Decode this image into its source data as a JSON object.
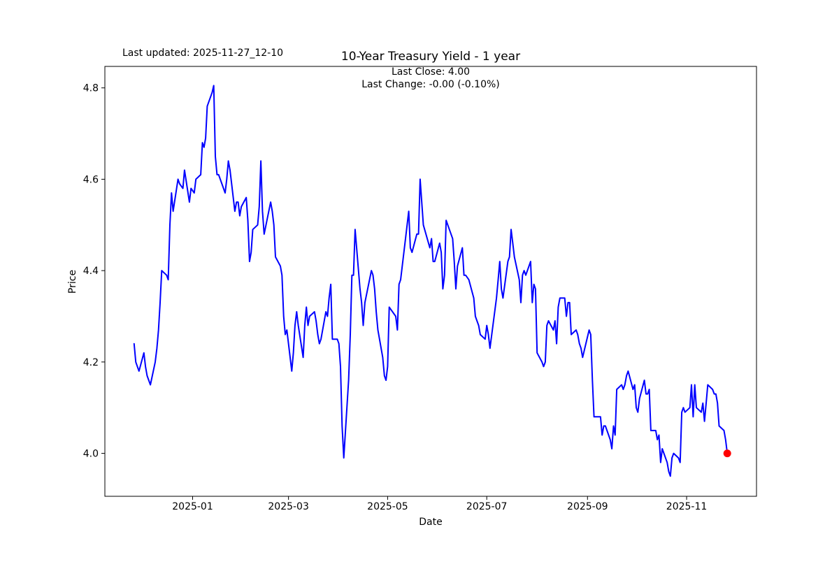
{
  "header": {
    "last_updated": "Last updated: 2025-11-27_12-10"
  },
  "chart_data": {
    "type": "line",
    "title": "10-Year Treasury Yield - 1 year",
    "subtitle_line1": "Last Close: 4.00",
    "subtitle_line2": "Last Change: -0.00 (-0.10%)",
    "xlabel": "Date",
    "ylabel": "Price",
    "legend": "none",
    "grid": false,
    "line_color": "#0000ff",
    "marker_color": "#ff0000",
    "xlim": [
      "2024-11-08",
      "2025-12-14"
    ],
    "ylim": [
      3.906,
      4.847
    ],
    "y_ticks": [
      4.0,
      4.2,
      4.4,
      4.6,
      4.8
    ],
    "x_ticks": [
      {
        "label": "2025-01",
        "date": "2025-01-01"
      },
      {
        "label": "2025-03",
        "date": "2025-03-01"
      },
      {
        "label": "2025-05",
        "date": "2025-05-01"
      },
      {
        "label": "2025-07",
        "date": "2025-07-01"
      },
      {
        "label": "2025-09",
        "date": "2025-09-01"
      },
      {
        "label": "2025-11",
        "date": "2025-11-01"
      }
    ],
    "series_name": "10-Year Treasury Yield",
    "last_close": 4.0,
    "last_change": "-0.00 (-0.10%)",
    "points": [
      [
        "2024-11-26",
        4.24
      ],
      [
        "2024-11-27",
        4.2
      ],
      [
        "2024-11-29",
        4.18
      ],
      [
        "2024-12-02",
        4.22
      ],
      [
        "2024-12-03",
        4.19
      ],
      [
        "2024-12-04",
        4.17
      ],
      [
        "2024-12-06",
        4.15
      ],
      [
        "2024-12-09",
        4.2
      ],
      [
        "2024-12-10",
        4.23
      ],
      [
        "2024-12-11",
        4.27
      ],
      [
        "2024-12-12",
        4.33
      ],
      [
        "2024-12-13",
        4.4
      ],
      [
        "2024-12-16",
        4.39
      ],
      [
        "2024-12-17",
        4.38
      ],
      [
        "2024-12-18",
        4.5
      ],
      [
        "2024-12-19",
        4.57
      ],
      [
        "2024-12-20",
        4.53
      ],
      [
        "2024-12-23",
        4.6
      ],
      [
        "2024-12-24",
        4.59
      ],
      [
        "2024-12-26",
        4.58
      ],
      [
        "2024-12-27",
        4.62
      ],
      [
        "2024-12-30",
        4.55
      ],
      [
        "2024-12-31",
        4.58
      ],
      [
        "2025-01-02",
        4.57
      ],
      [
        "2025-01-03",
        4.6
      ],
      [
        "2025-01-06",
        4.61
      ],
      [
        "2025-01-07",
        4.68
      ],
      [
        "2025-01-08",
        4.67
      ],
      [
        "2025-01-09",
        4.69
      ],
      [
        "2025-01-10",
        4.76
      ],
      [
        "2025-01-13",
        4.79
      ],
      [
        "2025-01-14",
        4.805
      ],
      [
        "2025-01-15",
        4.65
      ],
      [
        "2025-01-16",
        4.61
      ],
      [
        "2025-01-17",
        4.61
      ],
      [
        "2025-01-21",
        4.57
      ],
      [
        "2025-01-22",
        4.6
      ],
      [
        "2025-01-23",
        4.64
      ],
      [
        "2025-01-24",
        4.62
      ],
      [
        "2025-01-27",
        4.53
      ],
      [
        "2025-01-28",
        4.55
      ],
      [
        "2025-01-29",
        4.55
      ],
      [
        "2025-01-30",
        4.52
      ],
      [
        "2025-01-31",
        4.54
      ],
      [
        "2025-02-03",
        4.56
      ],
      [
        "2025-02-04",
        4.51
      ],
      [
        "2025-02-05",
        4.42
      ],
      [
        "2025-02-06",
        4.44
      ],
      [
        "2025-02-07",
        4.49
      ],
      [
        "2025-02-10",
        4.5
      ],
      [
        "2025-02-11",
        4.54
      ],
      [
        "2025-02-12",
        4.64
      ],
      [
        "2025-02-13",
        4.53
      ],
      [
        "2025-02-14",
        4.48
      ],
      [
        "2025-02-18",
        4.55
      ],
      [
        "2025-02-19",
        4.53
      ],
      [
        "2025-02-20",
        4.5
      ],
      [
        "2025-02-21",
        4.43
      ],
      [
        "2025-02-24",
        4.41
      ],
      [
        "2025-02-25",
        4.39
      ],
      [
        "2025-02-26",
        4.3
      ],
      [
        "2025-02-27",
        4.26
      ],
      [
        "2025-02-28",
        4.27
      ],
      [
        "2025-03-03",
        4.18
      ],
      [
        "2025-03-04",
        4.22
      ],
      [
        "2025-03-05",
        4.28
      ],
      [
        "2025-03-06",
        4.31
      ],
      [
        "2025-03-07",
        4.28
      ],
      [
        "2025-03-10",
        4.21
      ],
      [
        "2025-03-11",
        4.28
      ],
      [
        "2025-03-12",
        4.32
      ],
      [
        "2025-03-13",
        4.28
      ],
      [
        "2025-03-14",
        4.3
      ],
      [
        "2025-03-17",
        4.31
      ],
      [
        "2025-03-18",
        4.29
      ],
      [
        "2025-03-19",
        4.26
      ],
      [
        "2025-03-20",
        4.24
      ],
      [
        "2025-03-21",
        4.25
      ],
      [
        "2025-03-24",
        4.31
      ],
      [
        "2025-03-25",
        4.3
      ],
      [
        "2025-03-26",
        4.34
      ],
      [
        "2025-03-27",
        4.37
      ],
      [
        "2025-03-28",
        4.25
      ],
      [
        "2025-03-31",
        4.25
      ],
      [
        "2025-04-01",
        4.24
      ],
      [
        "2025-04-02",
        4.19
      ],
      [
        "2025-04-03",
        4.06
      ],
      [
        "2025-04-04",
        3.99
      ],
      [
        "2025-04-07",
        4.16
      ],
      [
        "2025-04-08",
        4.26
      ],
      [
        "2025-04-09",
        4.39
      ],
      [
        "2025-04-10",
        4.39
      ],
      [
        "2025-04-11",
        4.49
      ],
      [
        "2025-04-14",
        4.36
      ],
      [
        "2025-04-15",
        4.33
      ],
      [
        "2025-04-16",
        4.28
      ],
      [
        "2025-04-17",
        4.33
      ],
      [
        "2025-04-21",
        4.4
      ],
      [
        "2025-04-22",
        4.39
      ],
      [
        "2025-04-23",
        4.36
      ],
      [
        "2025-04-24",
        4.31
      ],
      [
        "2025-04-25",
        4.27
      ],
      [
        "2025-04-28",
        4.21
      ],
      [
        "2025-04-29",
        4.17
      ],
      [
        "2025-04-30",
        4.16
      ],
      [
        "2025-05-01",
        4.19
      ],
      [
        "2025-05-02",
        4.32
      ],
      [
        "2025-05-06",
        4.3
      ],
      [
        "2025-05-07",
        4.27
      ],
      [
        "2025-05-08",
        4.37
      ],
      [
        "2025-05-09",
        4.38
      ],
      [
        "2025-05-12",
        4.47
      ],
      [
        "2025-05-13",
        4.5
      ],
      [
        "2025-05-14",
        4.53
      ],
      [
        "2025-05-15",
        4.45
      ],
      [
        "2025-05-16",
        4.44
      ],
      [
        "2025-05-19",
        4.48
      ],
      [
        "2025-05-20",
        4.48
      ],
      [
        "2025-05-21",
        4.6
      ],
      [
        "2025-05-22",
        4.55
      ],
      [
        "2025-05-23",
        4.5
      ],
      [
        "2025-05-27",
        4.45
      ],
      [
        "2025-05-28",
        4.47
      ],
      [
        "2025-05-29",
        4.42
      ],
      [
        "2025-05-30",
        4.42
      ],
      [
        "2025-06-02",
        4.46
      ],
      [
        "2025-06-03",
        4.44
      ],
      [
        "2025-06-04",
        4.36
      ],
      [
        "2025-06-05",
        4.39
      ],
      [
        "2025-06-06",
        4.51
      ],
      [
        "2025-06-09",
        4.48
      ],
      [
        "2025-06-10",
        4.47
      ],
      [
        "2025-06-11",
        4.42
      ],
      [
        "2025-06-12",
        4.36
      ],
      [
        "2025-06-13",
        4.41
      ],
      [
        "2025-06-16",
        4.45
      ],
      [
        "2025-06-17",
        4.39
      ],
      [
        "2025-06-18",
        4.39
      ],
      [
        "2025-06-20",
        4.38
      ],
      [
        "2025-06-23",
        4.34
      ],
      [
        "2025-06-24",
        4.3
      ],
      [
        "2025-06-25",
        4.29
      ],
      [
        "2025-06-26",
        4.28
      ],
      [
        "2025-06-27",
        4.26
      ],
      [
        "2025-06-30",
        4.25
      ],
      [
        "2025-07-01",
        4.28
      ],
      [
        "2025-07-02",
        4.26
      ],
      [
        "2025-07-03",
        4.23
      ],
      [
        "2025-07-07",
        4.34
      ],
      [
        "2025-07-08",
        4.38
      ],
      [
        "2025-07-09",
        4.42
      ],
      [
        "2025-07-10",
        4.36
      ],
      [
        "2025-07-11",
        4.34
      ],
      [
        "2025-07-14",
        4.42
      ],
      [
        "2025-07-15",
        4.43
      ],
      [
        "2025-07-16",
        4.49
      ],
      [
        "2025-07-17",
        4.46
      ],
      [
        "2025-07-18",
        4.43
      ],
      [
        "2025-07-21",
        4.38
      ],
      [
        "2025-07-22",
        4.33
      ],
      [
        "2025-07-23",
        4.39
      ],
      [
        "2025-07-24",
        4.4
      ],
      [
        "2025-07-25",
        4.39
      ],
      [
        "2025-07-28",
        4.42
      ],
      [
        "2025-07-29",
        4.33
      ],
      [
        "2025-07-30",
        4.37
      ],
      [
        "2025-07-31",
        4.36
      ],
      [
        "2025-08-01",
        4.22
      ],
      [
        "2025-08-04",
        4.2
      ],
      [
        "2025-08-05",
        4.19
      ],
      [
        "2025-08-06",
        4.2
      ],
      [
        "2025-08-07",
        4.28
      ],
      [
        "2025-08-08",
        4.29
      ],
      [
        "2025-08-11",
        4.27
      ],
      [
        "2025-08-12",
        4.29
      ],
      [
        "2025-08-13",
        4.24
      ],
      [
        "2025-08-14",
        4.32
      ],
      [
        "2025-08-15",
        4.34
      ],
      [
        "2025-08-18",
        4.34
      ],
      [
        "2025-08-19",
        4.3
      ],
      [
        "2025-08-20",
        4.33
      ],
      [
        "2025-08-21",
        4.33
      ],
      [
        "2025-08-22",
        4.26
      ],
      [
        "2025-08-25",
        4.27
      ],
      [
        "2025-08-26",
        4.26
      ],
      [
        "2025-08-27",
        4.24
      ],
      [
        "2025-08-28",
        4.23
      ],
      [
        "2025-08-29",
        4.21
      ],
      [
        "2025-09-02",
        4.27
      ],
      [
        "2025-09-03",
        4.26
      ],
      [
        "2025-09-04",
        4.16
      ],
      [
        "2025-09-05",
        4.08
      ],
      [
        "2025-09-08",
        4.08
      ],
      [
        "2025-09-09",
        4.08
      ],
      [
        "2025-09-10",
        4.04
      ],
      [
        "2025-09-11",
        4.06
      ],
      [
        "2025-09-12",
        4.06
      ],
      [
        "2025-09-15",
        4.03
      ],
      [
        "2025-09-16",
        4.01
      ],
      [
        "2025-09-17",
        4.06
      ],
      [
        "2025-09-18",
        4.04
      ],
      [
        "2025-09-19",
        4.14
      ],
      [
        "2025-09-22",
        4.15
      ],
      [
        "2025-09-23",
        4.14
      ],
      [
        "2025-09-24",
        4.15
      ],
      [
        "2025-09-25",
        4.17
      ],
      [
        "2025-09-26",
        4.18
      ],
      [
        "2025-09-29",
        4.14
      ],
      [
        "2025-09-30",
        4.15
      ],
      [
        "2025-10-01",
        4.1
      ],
      [
        "2025-10-02",
        4.09
      ],
      [
        "2025-10-03",
        4.12
      ],
      [
        "2025-10-06",
        4.16
      ],
      [
        "2025-10-07",
        4.13
      ],
      [
        "2025-10-08",
        4.13
      ],
      [
        "2025-10-09",
        4.14
      ],
      [
        "2025-10-10",
        4.05
      ],
      [
        "2025-10-13",
        4.05
      ],
      [
        "2025-10-14",
        4.03
      ],
      [
        "2025-10-15",
        4.04
      ],
      [
        "2025-10-16",
        3.98
      ],
      [
        "2025-10-17",
        4.01
      ],
      [
        "2025-10-20",
        3.98
      ],
      [
        "2025-10-21",
        3.96
      ],
      [
        "2025-10-22",
        3.95
      ],
      [
        "2025-10-23",
        3.99
      ],
      [
        "2025-10-24",
        4.0
      ],
      [
        "2025-10-27",
        3.99
      ],
      [
        "2025-10-28",
        3.98
      ],
      [
        "2025-10-29",
        4.09
      ],
      [
        "2025-10-30",
        4.1
      ],
      [
        "2025-10-31",
        4.09
      ],
      [
        "2025-11-03",
        4.1
      ],
      [
        "2025-11-04",
        4.15
      ],
      [
        "2025-11-05",
        4.08
      ],
      [
        "2025-11-06",
        4.15
      ],
      [
        "2025-11-07",
        4.1
      ],
      [
        "2025-11-10",
        4.09
      ],
      [
        "2025-11-11",
        4.11
      ],
      [
        "2025-11-12",
        4.07
      ],
      [
        "2025-11-13",
        4.11
      ],
      [
        "2025-11-14",
        4.15
      ],
      [
        "2025-11-17",
        4.14
      ],
      [
        "2025-11-18",
        4.13
      ],
      [
        "2025-11-19",
        4.13
      ],
      [
        "2025-11-20",
        4.11
      ],
      [
        "2025-11-21",
        4.06
      ],
      [
        "2025-11-24",
        4.05
      ],
      [
        "2025-11-25",
        4.03
      ],
      [
        "2025-11-26",
        4.0
      ]
    ]
  }
}
